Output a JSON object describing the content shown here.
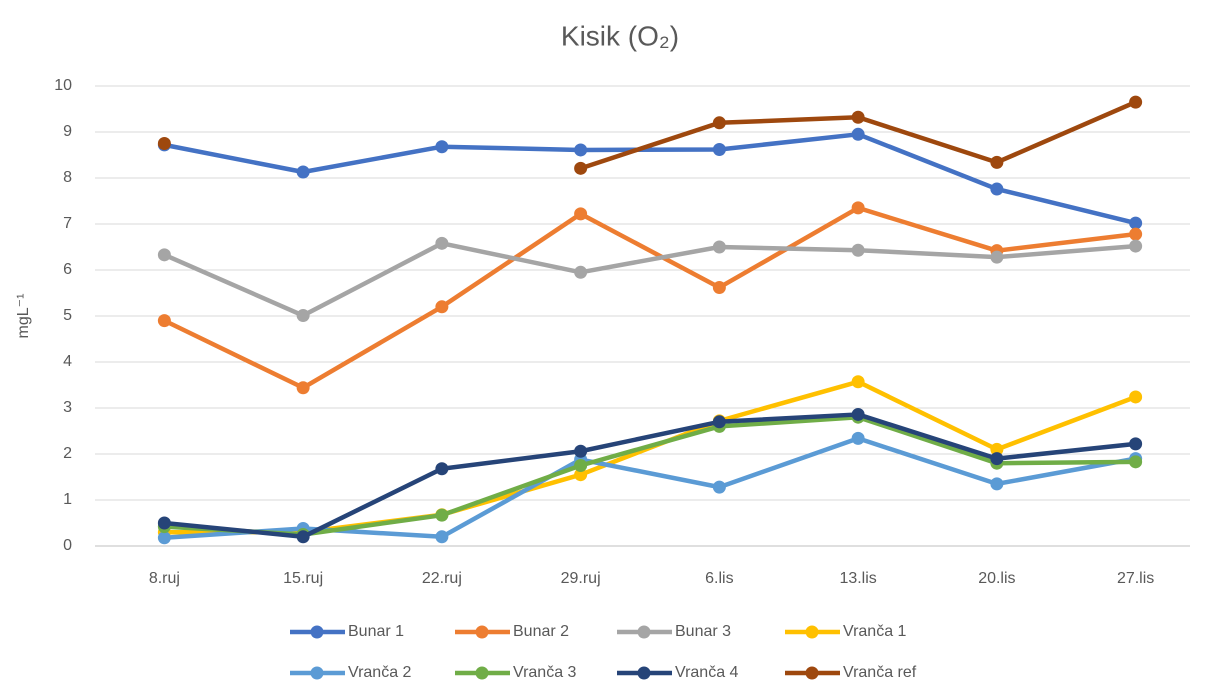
{
  "chart_data": {
    "type": "line",
    "title": "Kisik (O₂)",
    "y_label": "mgL⁻¹",
    "categories": [
      "8.ruj",
      "15.ruj",
      "22.ruj",
      "29.ruj",
      "6.lis",
      "13.lis",
      "20.lis",
      "27.lis"
    ],
    "ylim": [
      0,
      10
    ],
    "yticks": [
      0,
      1,
      2,
      3,
      4,
      5,
      6,
      7,
      8,
      9,
      10
    ],
    "grid": true,
    "legend": "bottom",
    "series": [
      {
        "name": "Bunar 1",
        "color": "#4472c4",
        "values": [
          8.72,
          8.13,
          8.68,
          8.61,
          8.62,
          8.95,
          7.76,
          7.02
        ]
      },
      {
        "name": "Bunar 2",
        "color": "#ed7d31",
        "values": [
          4.9,
          3.44,
          5.2,
          7.22,
          5.62,
          7.35,
          6.42,
          6.78
        ]
      },
      {
        "name": "Bunar 3",
        "color": "#a5a5a5",
        "values": [
          6.33,
          5.01,
          6.58,
          5.95,
          6.5,
          6.43,
          6.28,
          6.52
        ]
      },
      {
        "name": "Vranča 1",
        "color": "#ffc000",
        "values": [
          0.3,
          0.3,
          0.68,
          1.55,
          2.72,
          3.57,
          2.1,
          3.24
        ]
      },
      {
        "name": "Vranča 2",
        "color": "#5b9bd5",
        "values": [
          0.18,
          0.38,
          0.2,
          1.88,
          1.28,
          2.34,
          1.35,
          1.9
        ]
      },
      {
        "name": "Vranča 3",
        "color": "#70ad47",
        "values": [
          0.42,
          0.25,
          0.67,
          1.75,
          2.6,
          2.8,
          1.8,
          1.83
        ]
      },
      {
        "name": "Vranča 4",
        "color": "#264478",
        "values": [
          0.5,
          0.2,
          1.68,
          2.06,
          2.7,
          2.86,
          1.9,
          2.22
        ]
      },
      {
        "name": "Vranča ref",
        "color": "#9e480e",
        "values": [
          8.75,
          null,
          null,
          8.21,
          9.2,
          9.32,
          8.34,
          9.65
        ]
      }
    ]
  }
}
